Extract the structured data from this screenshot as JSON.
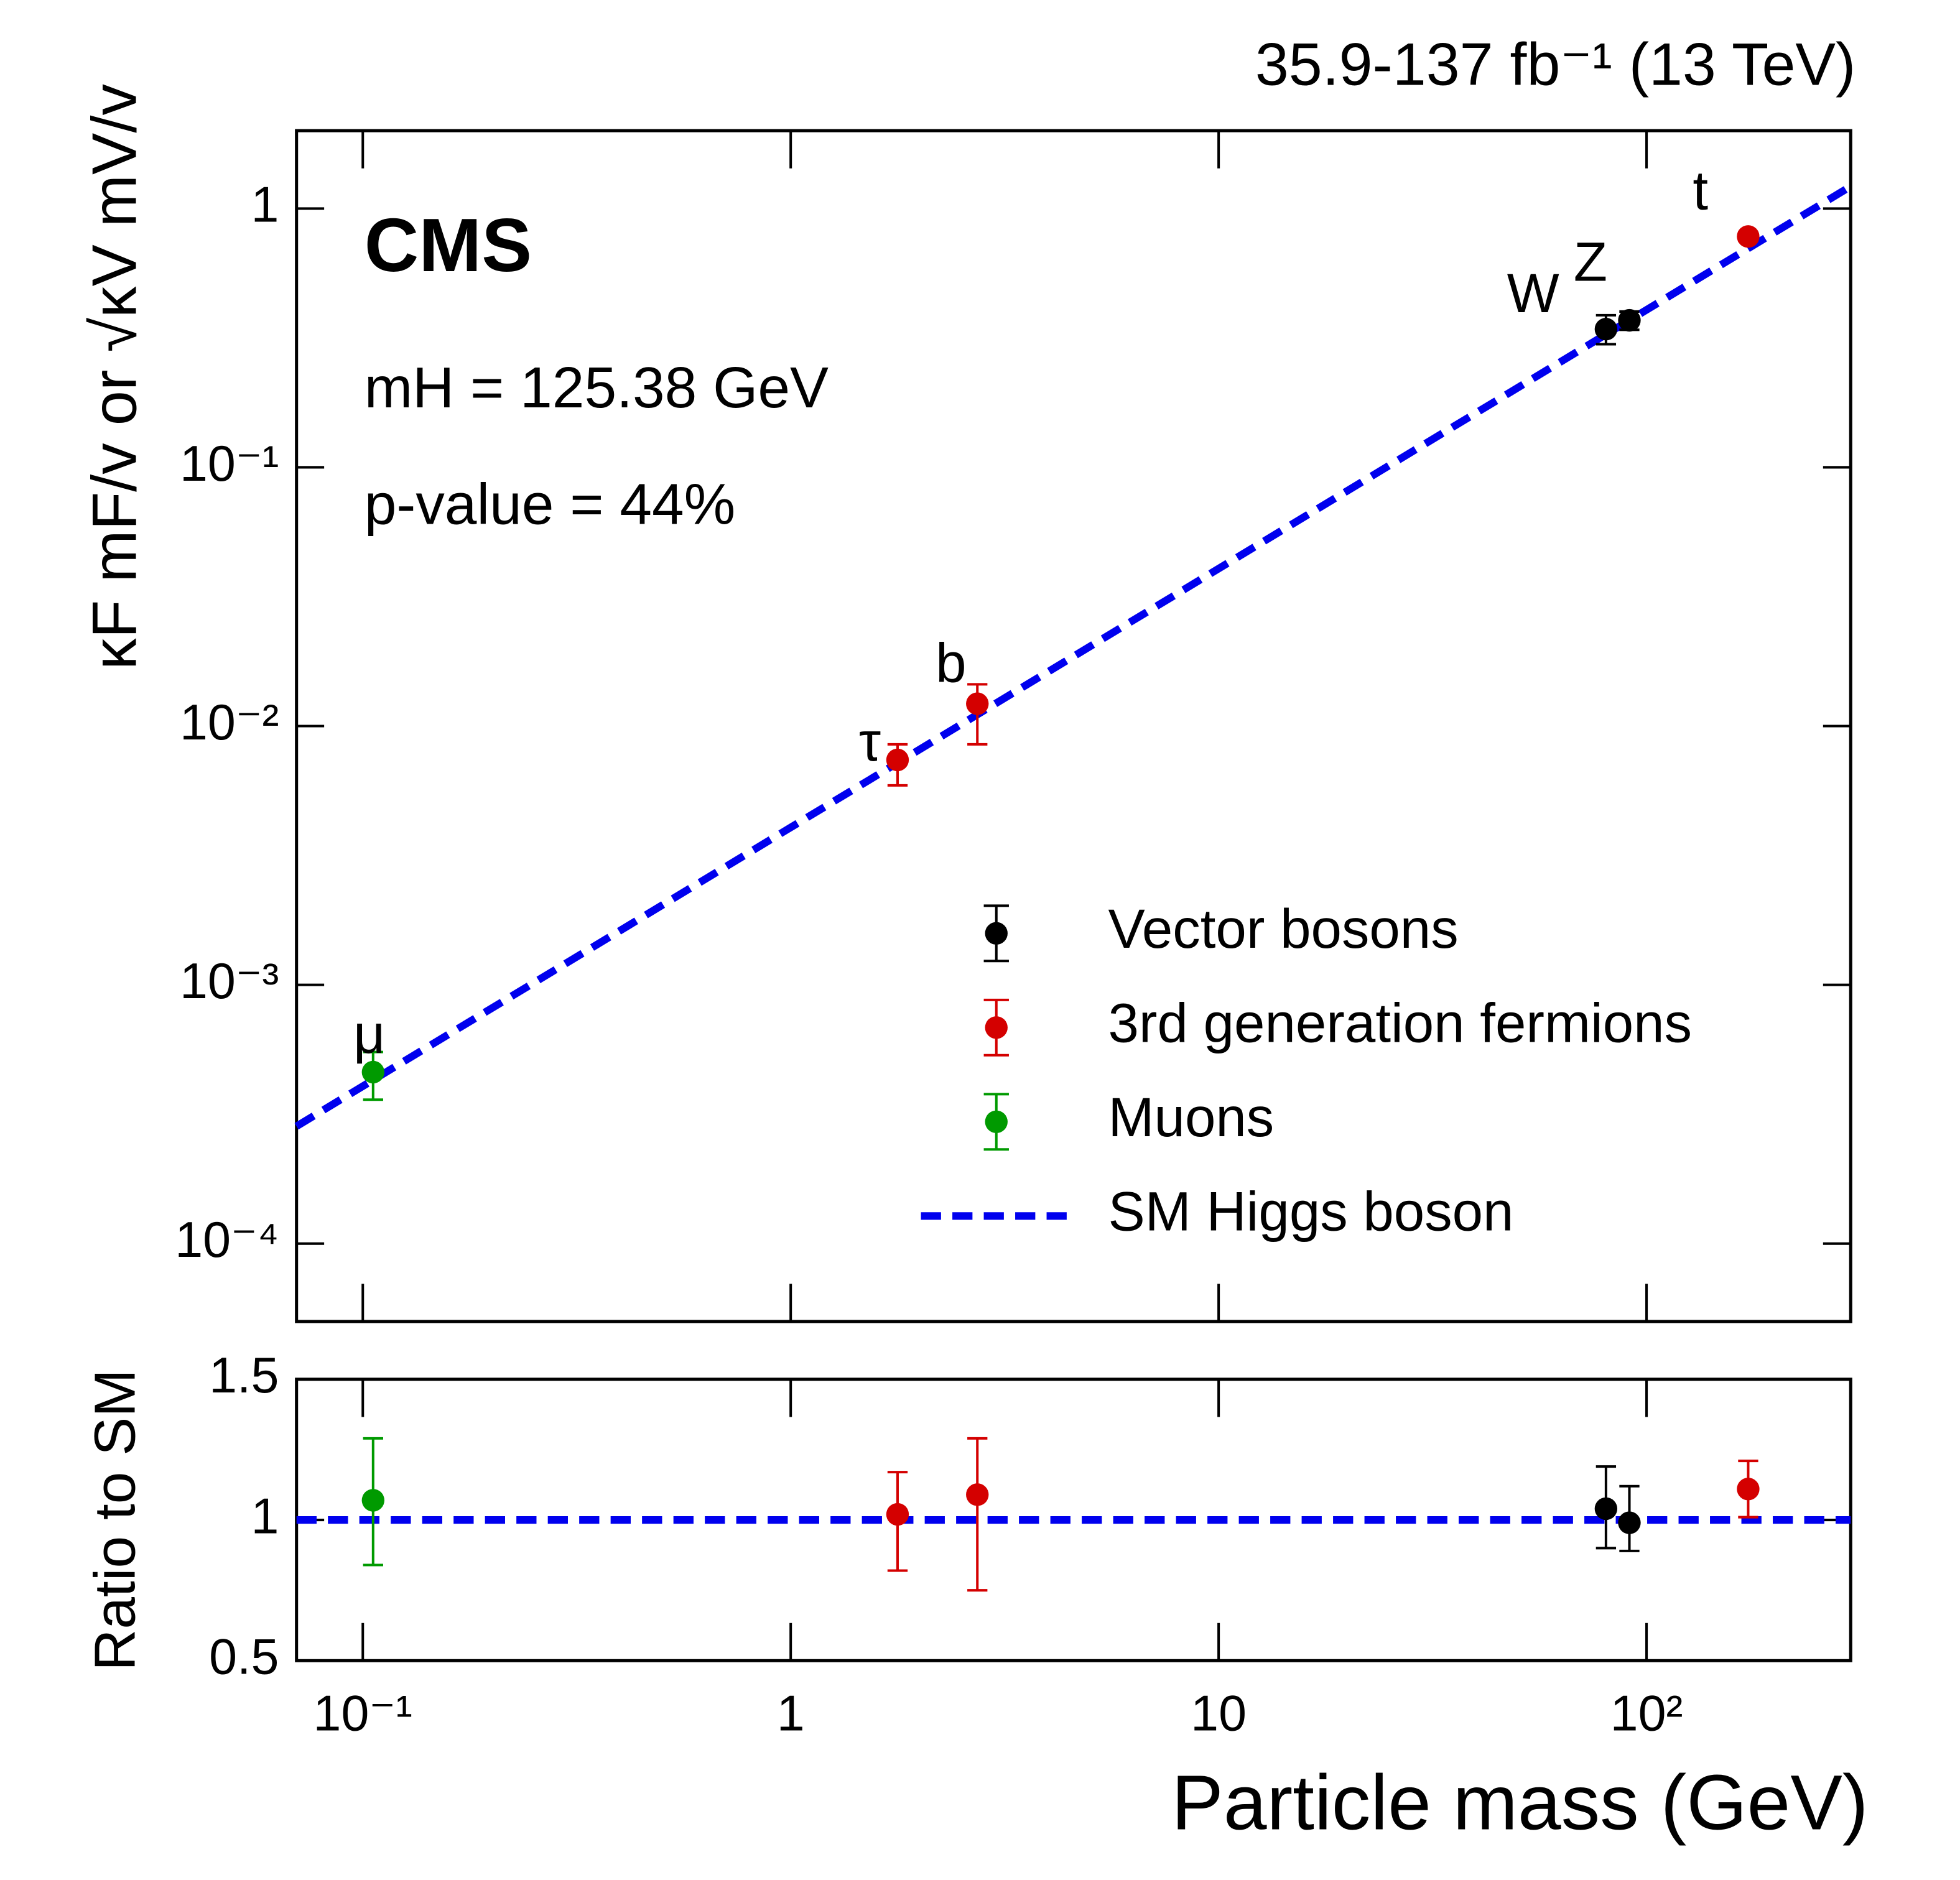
{
  "chart_data": [
    {
      "type": "scatter",
      "title": "35.9-137 fb⁻¹ (13 TeV)",
      "annotations": [
        "CMS",
        "mH = 125.38 GeV",
        "p-value = 44%"
      ],
      "ylabel": "κF mF/v or √κV mV/v",
      "xscale": "log",
      "yscale": "log",
      "xlim": [
        0.07,
        300
      ],
      "ylim": [
        5e-05,
        2
      ],
      "yticks": [
        {
          "value": 0.0001,
          "label": "10⁻⁴"
        },
        {
          "value": 0.001,
          "label": "10⁻³"
        },
        {
          "value": 0.01,
          "label": "10⁻²"
        },
        {
          "value": 0.1,
          "label": "10⁻¹"
        },
        1
      ],
      "legend": "lower right",
      "series": [
        {
          "name": "Vector bosons",
          "color": "#000000",
          "labels": [
            "W",
            "Z"
          ],
          "x": [
            80.4,
            91.19
          ],
          "values": [
            0.342,
            0.37
          ],
          "errors_up": [
            0.045,
            0.03
          ],
          "errors_down": [
            0.043,
            0.03
          ]
        },
        {
          "name": "3rd generation fermions",
          "color": "#d40000",
          "labels": [
            "τ",
            "b",
            "t"
          ],
          "x": [
            1.777,
            2.73,
            172.8
          ],
          "values": [
            0.0074,
            0.0122,
            0.78
          ],
          "errors_up": [
            0.0011,
            0.0023,
            0.03
          ],
          "errors_down": [
            0.0015,
            0.0037,
            0.03
          ]
        },
        {
          "name": "Muons",
          "color": "#009a00",
          "labels": [
            "μ"
          ],
          "x": [
            0.1057
          ],
          "values": [
            0.00046
          ],
          "errors_up": [
            9e-05
          ],
          "errors_down": [
            0.0001
          ]
        }
      ],
      "line": {
        "name": "SM Higgs boson",
        "color": "#0000ee",
        "x": [
          0.07,
          300
        ],
        "values": [
          0.000284,
          1.218
        ]
      }
    },
    {
      "type": "scatter",
      "ylabel": "Ratio to SM",
      "xlabel": "Particle mass (GeV)",
      "xscale": "log",
      "xlim": [
        0.07,
        300
      ],
      "ylim": [
        0.5,
        1.5
      ],
      "xticks": [
        {
          "value": 0.1,
          "label": "10⁻¹"
        },
        1,
        10,
        {
          "value": 100,
          "label": "10²"
        }
      ],
      "yticks": [
        0.5,
        1,
        1.5
      ],
      "series": [
        {
          "color": "#000000",
          "x": [
            80.4,
            91.19
          ],
          "values": [
            1.04,
            0.99
          ],
          "errors_up": [
            0.15,
            0.13
          ],
          "errors_down": [
            0.14,
            0.1
          ]
        },
        {
          "color": "#d40000",
          "x": [
            1.777,
            2.73,
            172.8
          ],
          "values": [
            1.02,
            1.09,
            1.11
          ],
          "errors_up": [
            0.15,
            0.2,
            0.1
          ],
          "errors_down": [
            0.2,
            0.34,
            0.1
          ]
        },
        {
          "color": "#009a00",
          "x": [
            0.1057
          ],
          "values": [
            1.07
          ],
          "errors_up": [
            0.22
          ],
          "errors_down": [
            0.23
          ]
        }
      ],
      "line": {
        "color": "#0000ee",
        "x": [
          0.07,
          300
        ],
        "values": [
          1,
          1
        ]
      }
    }
  ]
}
